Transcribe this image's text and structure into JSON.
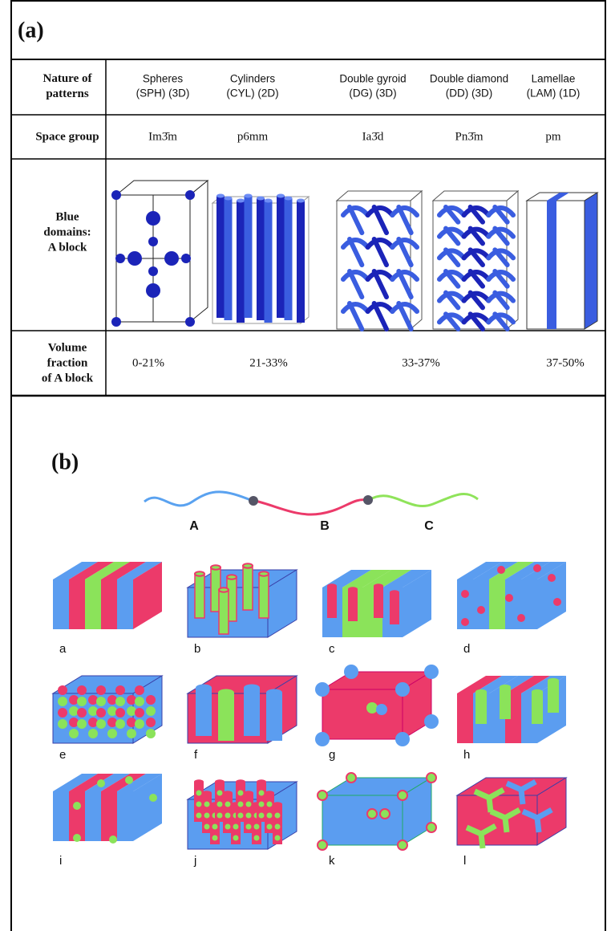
{
  "panel_a": {
    "label": "(a)",
    "rows": [
      {
        "header": [
          "Nature of",
          "patterns"
        ],
        "cells": [
          [
            "Spheres",
            "(SPH) (3D)"
          ],
          [
            "Cylinders",
            "(CYL) (2D)"
          ],
          [
            "Double gyroid",
            "(DG) (3D)"
          ],
          [
            "Double diamond",
            "(DD) (3D)"
          ],
          [
            "Lamellae",
            "(LAM) (1D)"
          ]
        ]
      },
      {
        "header": [
          "Space group"
        ],
        "cells": [
          [
            "Im3̄m"
          ],
          [
            "p6mm"
          ],
          [
            "Ia3̄d"
          ],
          [
            "Pn3̄m"
          ],
          [
            "pm"
          ]
        ]
      },
      {
        "header": [
          "Blue",
          "domains:",
          "A block"
        ]
      },
      {
        "header": [
          "Volume",
          "fraction",
          "of A block"
        ],
        "cells": [
          [
            "0-21%"
          ],
          [
            "21-33%"
          ],
          [
            "33-37%"
          ],
          [
            "37-50%"
          ]
        ]
      }
    ]
  },
  "panel_b": {
    "label": "(b)",
    "chain_labels": [
      "A",
      "B",
      "C"
    ],
    "morphology_labels": [
      "a",
      "b",
      "c",
      "d",
      "e",
      "f",
      "g",
      "h",
      "i",
      "j",
      "k",
      "l"
    ]
  }
}
